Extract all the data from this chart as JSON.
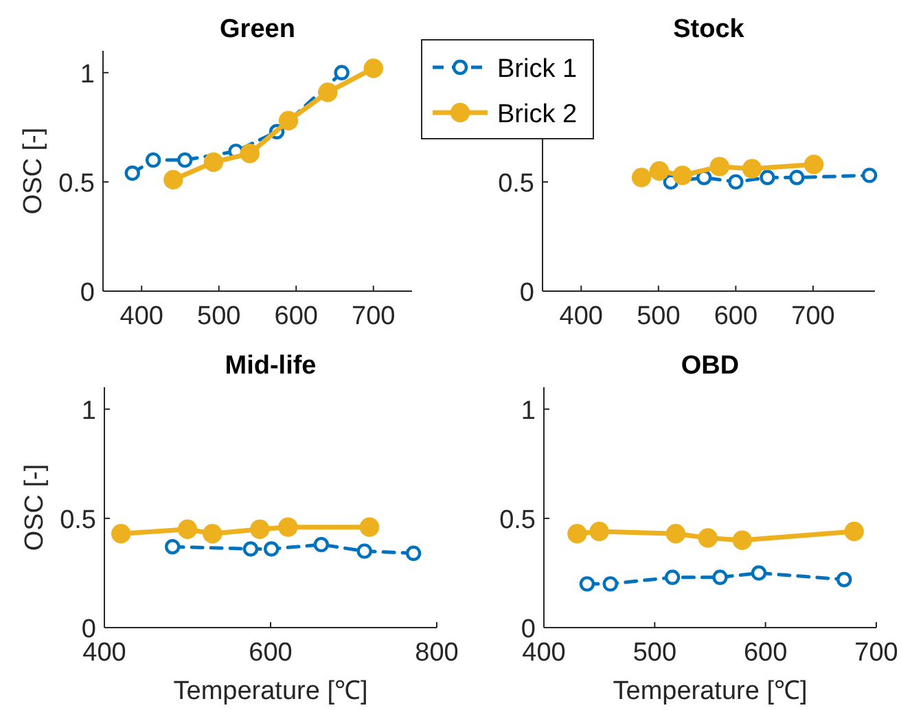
{
  "chart_data": [
    {
      "type": "line",
      "title": "Green",
      "ylabel": "OSC [-]",
      "xlim": [
        350,
        750
      ],
      "xticks": [
        400,
        500,
        600,
        700
      ],
      "ylim": [
        0,
        1.1
      ],
      "yticks": [
        0,
        0.5,
        1
      ],
      "legend": "top right",
      "series": [
        {
          "name": "Brick 1",
          "color": "#0072bd",
          "line_style": "dashed",
          "marker": "circle",
          "x": [
            388,
            415,
            456,
            522,
            575,
            659
          ],
          "values": [
            0.54,
            0.6,
            0.6,
            0.64,
            0.73,
            1.0
          ]
        },
        {
          "name": "Brick 2",
          "color": "#edb120",
          "line_style": "solid",
          "marker": "circle",
          "x": [
            441,
            493,
            540,
            590,
            641,
            700
          ],
          "values": [
            0.51,
            0.59,
            0.63,
            0.78,
            0.91,
            1.02
          ]
        }
      ]
    },
    {
      "type": "line",
      "title": "Stock",
      "xlim": [
        350,
        780
      ],
      "xticks": [
        400,
        500,
        600,
        700
      ],
      "ylim": [
        0,
        1.1
      ],
      "yticks": [
        0,
        0.5
      ],
      "series": [
        {
          "color": "#0072bd",
          "line_style": "dashed",
          "marker": "circle",
          "x": [
            516,
            559,
            600,
            641,
            679,
            773
          ],
          "values": [
            0.5,
            0.52,
            0.5,
            0.52,
            0.52,
            0.53
          ]
        },
        {
          "color": "#edb120",
          "line_style": "solid",
          "marker": "circle",
          "x": [
            478,
            501,
            531,
            579,
            621,
            701
          ],
          "values": [
            0.52,
            0.55,
            0.53,
            0.57,
            0.56,
            0.58
          ]
        }
      ]
    },
    {
      "type": "line",
      "title": "Mid-life",
      "ylabel": "OSC [-]",
      "xlabel": "Temperature [℃]",
      "xlim": [
        400,
        800
      ],
      "xticks": [
        400,
        600,
        800
      ],
      "ylim": [
        0,
        1.1
      ],
      "yticks": [
        0,
        0.5,
        1
      ],
      "series": [
        {
          "color": "#0072bd",
          "line_style": "dashed",
          "marker": "circle",
          "x": [
            482,
            576,
            601,
            661,
            713,
            772
          ],
          "values": [
            0.37,
            0.36,
            0.36,
            0.38,
            0.35,
            0.34
          ]
        },
        {
          "color": "#edb120",
          "line_style": "solid",
          "marker": "circle",
          "x": [
            420,
            500,
            530,
            587,
            621,
            719
          ],
          "values": [
            0.43,
            0.45,
            0.43,
            0.45,
            0.46,
            0.46
          ]
        }
      ]
    },
    {
      "type": "line",
      "title": "OBD",
      "xlabel": "Temperature [℃]",
      "xlim": [
        400,
        700
      ],
      "xticks": [
        400,
        500,
        600,
        700
      ],
      "ylim": [
        0,
        1.1
      ],
      "yticks": [
        0,
        0.5,
        1
      ],
      "series": [
        {
          "color": "#0072bd",
          "line_style": "dashed",
          "marker": "circle",
          "x": [
            439,
            460,
            516,
            559,
            594,
            671
          ],
          "values": [
            0.2,
            0.2,
            0.23,
            0.23,
            0.25,
            0.22
          ]
        },
        {
          "color": "#edb120",
          "line_style": "solid",
          "marker": "circle",
          "x": [
            430,
            450,
            519,
            548,
            579,
            680
          ],
          "values": [
            0.43,
            0.44,
            0.43,
            0.41,
            0.4,
            0.44
          ]
        }
      ]
    }
  ]
}
